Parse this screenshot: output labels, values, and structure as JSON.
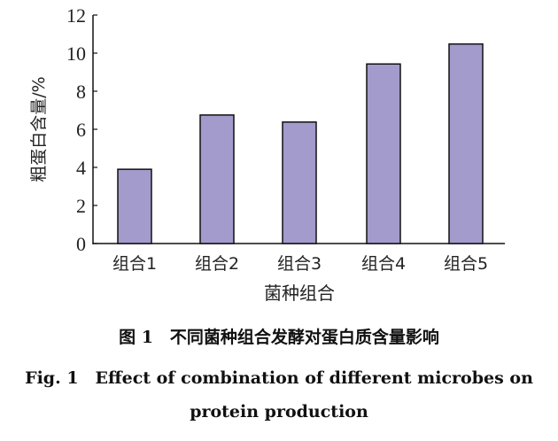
{
  "chart_data": {
    "type": "bar",
    "categories": [
      "组合1",
      "组合2",
      "组合3",
      "组合4",
      "组合5"
    ],
    "values": [
      3.9,
      6.75,
      6.38,
      9.43,
      10.48
    ],
    "title": "",
    "xlabel": "菌种组合",
    "ylabel": "粗蛋白含量/%",
    "ylim": [
      0,
      12
    ],
    "yticks": [
      0,
      2,
      4,
      6,
      8,
      10,
      12
    ],
    "bar_color": "#a29bcb",
    "grid": false
  },
  "caption": {
    "cn": "图 1　不同菌种组合发酵对蛋白质含量影响",
    "en_line1": "Fig. 1　Effect of combination of different microbes on",
    "en_line2": "protein production"
  }
}
